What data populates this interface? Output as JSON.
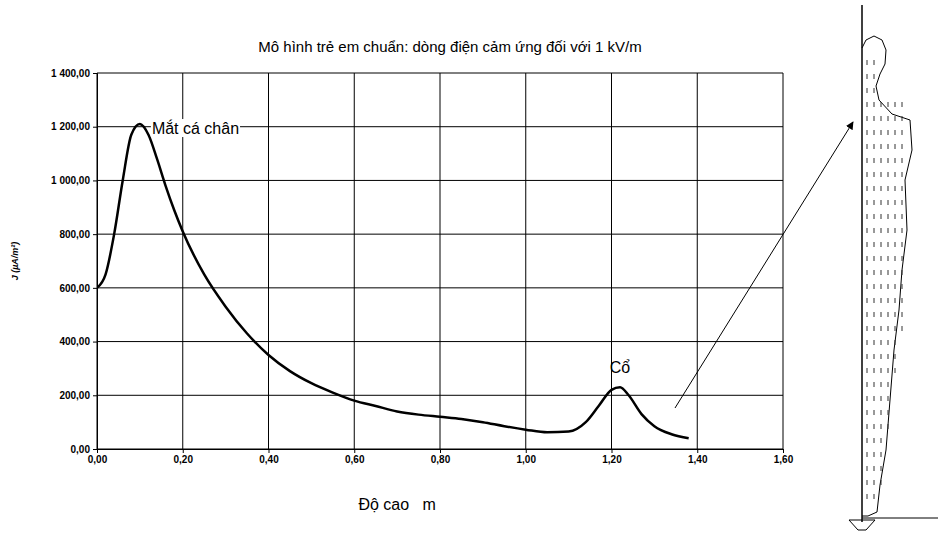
{
  "chart_data": {
    "type": "line",
    "title": "Mô hình trẻ em chuẩn: dòng điện cảm ứng đối với 1 kV/m",
    "x_label": "Độ cao   m",
    "y_label": "J (µA/m²)",
    "grid": true,
    "xlim": [
      0,
      1.6
    ],
    "ylim": [
      0,
      1400
    ],
    "xticks": [
      {
        "value": 0,
        "label": "0,00"
      },
      {
        "value": 0.2,
        "label": "0,20"
      },
      {
        "value": 0.4,
        "label": "0,40"
      },
      {
        "value": 0.6,
        "label": "0,60"
      },
      {
        "value": 0.8,
        "label": "0,80"
      },
      {
        "value": 1.0,
        "label": "1,00"
      },
      {
        "value": 1.2,
        "label": "1,20"
      },
      {
        "value": 1.4,
        "label": "1,40"
      },
      {
        "value": 1.6,
        "label": "1,60"
      }
    ],
    "yticks": [
      {
        "value": 0,
        "label": "0,00"
      },
      {
        "value": 200,
        "label": "200,00"
      },
      {
        "value": 400,
        "label": "400,00"
      },
      {
        "value": 600,
        "label": "600,00"
      },
      {
        "value": 800,
        "label": "800,00"
      },
      {
        "value": 1000,
        "label": "1 000,00"
      },
      {
        "value": 1200,
        "label": "1 200,00"
      },
      {
        "value": 1400,
        "label": "1 400,00"
      }
    ],
    "x": [
      0.0,
      0.02,
      0.04,
      0.06,
      0.08,
      0.1,
      0.12,
      0.14,
      0.16,
      0.18,
      0.2,
      0.25,
      0.3,
      0.35,
      0.4,
      0.45,
      0.5,
      0.55,
      0.6,
      0.65,
      0.7,
      0.75,
      0.8,
      0.85,
      0.9,
      0.95,
      1.0,
      1.05,
      1.1,
      1.14,
      1.17,
      1.2,
      1.22,
      1.24,
      1.27,
      1.3,
      1.34,
      1.38
    ],
    "series": [
      {
        "color": "#000000",
        "values": [
          600,
          650,
          800,
          1000,
          1170,
          1210,
          1170,
          1080,
          980,
          890,
          810,
          650,
          530,
          430,
          350,
          290,
          245,
          210,
          180,
          160,
          140,
          128,
          120,
          112,
          100,
          85,
          72,
          62,
          65,
          100,
          160,
          220,
          230,
          200,
          130,
          85,
          55,
          40
        ]
      }
    ],
    "annotations": [
      {
        "text": "Mắt cá chân",
        "x": 0.1,
        "y": 1210
      },
      {
        "text": "Cổ",
        "x": 1.21,
        "y": 230
      }
    ]
  }
}
